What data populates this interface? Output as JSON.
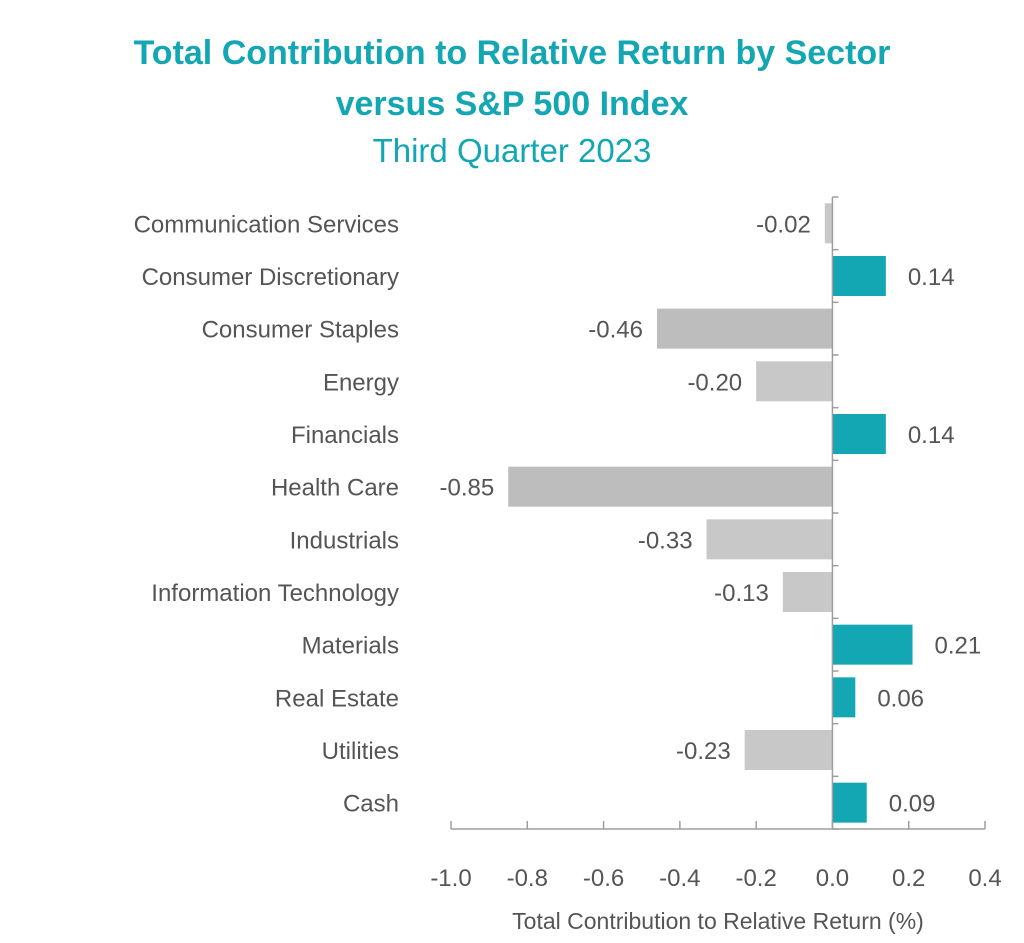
{
  "chart_data": {
    "type": "bar",
    "orientation": "horizontal",
    "title": "Total Contribution to Relative Return by Sector",
    "title_line2": "versus S&P 500 Index",
    "subtitle": "Third Quarter 2023",
    "xlabel": "Total Contribution to Relative Return (%)",
    "ylabel": "",
    "categories": [
      "Communication Services",
      "Consumer Discretionary",
      "Consumer Staples",
      "Energy",
      "Financials",
      "Health Care",
      "Industrials",
      "Information Technology",
      "Materials",
      "Real Estate",
      "Utilities",
      "Cash"
    ],
    "values": [
      -0.02,
      0.14,
      -0.46,
      -0.2,
      0.14,
      -0.85,
      -0.33,
      -0.13,
      0.21,
      0.06,
      -0.23,
      0.09
    ],
    "value_labels": [
      "-0.02",
      "0.14",
      "-0.46",
      "-0.20",
      "0.14",
      "-0.85",
      "-0.33",
      "-0.13",
      "0.21",
      "0.06",
      "-0.23",
      "0.09"
    ],
    "bar_colors": [
      "#c8c8c8",
      "#13a6b3",
      "#bdbdbd",
      "#c8c8c8",
      "#13a6b3",
      "#bdbdbd",
      "#c8c8c8",
      "#c8c8c8",
      "#13a6b3",
      "#13a6b3",
      "#c8c8c8",
      "#13a6b3"
    ],
    "xlim": [
      -1.0,
      0.4
    ],
    "xticks": [
      -1.0,
      -0.8,
      -0.6,
      -0.4,
      -0.2,
      0.0,
      0.2,
      0.4
    ],
    "xtick_labels": [
      "-1.0",
      "-0.8",
      "-0.6",
      "-0.4",
      "-0.2",
      "0.0",
      "0.2",
      "0.4"
    ],
    "grid": false,
    "legend": "none"
  },
  "colors": {
    "title": "#13a6b3",
    "positive": "#13a6b3",
    "text": "#555555",
    "axis": "#9e9e9e"
  }
}
